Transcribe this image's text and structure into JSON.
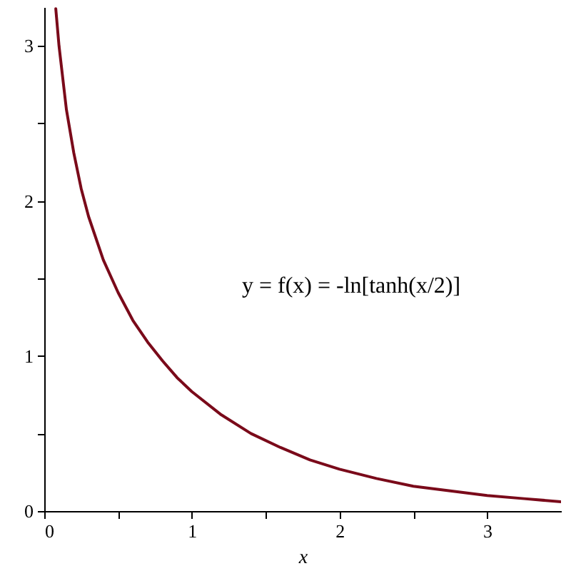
{
  "chart_data": {
    "type": "line",
    "xlabel": "x",
    "annotations": [
      "y = f(x) = -ln[tanh(x/2)]"
    ],
    "x": [
      0.078,
      0.1,
      0.15,
      0.2,
      0.25,
      0.3,
      0.4,
      0.5,
      0.6,
      0.7,
      0.8,
      0.9,
      1.0,
      1.2,
      1.4,
      1.6,
      1.8,
      2.0,
      2.25,
      2.5,
      2.75,
      3.0,
      3.25,
      3.5
    ],
    "series": [
      {
        "color": "#7a0a1a",
        "values": [
          3.24,
          3.0,
          2.59,
          2.31,
          2.08,
          1.9,
          1.62,
          1.41,
          1.23,
          1.09,
          0.97,
          0.86,
          0.77,
          0.62,
          0.5,
          0.41,
          0.33,
          0.27,
          0.21,
          0.16,
          0.13,
          0.1,
          0.08,
          0.06
        ]
      }
    ],
    "xlim": [
      0,
      3.5
    ],
    "ylim": [
      0,
      3.25
    ],
    "xticks": [
      0,
      {
        "value": 0.5,
        "label": null
      },
      1,
      {
        "value": 1.5,
        "label": null
      },
      2,
      {
        "value": 2.5,
        "label": null
      },
      3
    ],
    "yticks": [
      0,
      {
        "value": 0.5,
        "label": null
      },
      1,
      {
        "value": 1.5,
        "label": null
      },
      2,
      {
        "value": 2.5,
        "label": null
      },
      3
    ]
  }
}
